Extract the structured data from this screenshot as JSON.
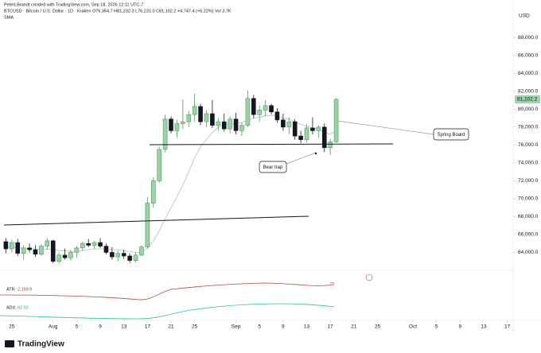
{
  "header": {
    "created_by": "PeterLBrandt created with TradingView.com, Sep 18, 2026 12:11 UTC-7",
    "symbol_line": "BTCUSD · Bitcoin / U.S. Dollar · 1D · Kraken  O76,354.7 H81,232.3 L76,231.0 C81,102.2 +4,747.4 (+6.22%) Vol 3.7K",
    "sma_label": "SMA"
  },
  "chart_data": {
    "type": "candlestick",
    "x": [
      "2026-07-24",
      "2026-07-25",
      "2026-07-26",
      "2026-07-27",
      "2026-07-28",
      "2026-07-29",
      "2026-07-30",
      "2026-07-31",
      "2026-08-01",
      "2026-08-02",
      "2026-08-03",
      "2026-08-04",
      "2026-08-05",
      "2026-08-06",
      "2026-08-07",
      "2026-08-08",
      "2026-08-09",
      "2026-08-10",
      "2026-08-11",
      "2026-08-12",
      "2026-08-13",
      "2026-08-14",
      "2026-08-15",
      "2026-08-16",
      "2026-08-17",
      "2026-08-18",
      "2026-08-19",
      "2026-08-20",
      "2026-08-21",
      "2026-08-22",
      "2026-08-23",
      "2026-08-24",
      "2026-08-25",
      "2026-08-26",
      "2026-08-27",
      "2026-08-28",
      "2026-08-29",
      "2026-08-30",
      "2026-08-31",
      "2026-09-01",
      "2026-09-02",
      "2026-09-03",
      "2026-09-04",
      "2026-09-05",
      "2026-09-06",
      "2026-09-07",
      "2026-09-08",
      "2026-09-09",
      "2026-09-10",
      "2026-09-11",
      "2026-09-12",
      "2026-09-13",
      "2026-09-14",
      "2026-09-15",
      "2026-09-16",
      "2026-09-17",
      "2026-09-18"
    ],
    "open": [
      65200,
      64400,
      65100,
      63900,
      64500,
      64300,
      63800,
      64700,
      65300,
      63000,
      63700,
      63400,
      64000,
      64500,
      65000,
      64800,
      65100,
      64700,
      64000,
      63500,
      63900,
      63600,
      63100,
      63700,
      64600,
      69500,
      72000,
      75500,
      78900,
      77600,
      78400,
      78600,
      79400,
      80300,
      78600,
      79500,
      78200,
      78600,
      77800,
      78900,
      77600,
      78200,
      81200,
      79400,
      79900,
      80400,
      79700,
      78800,
      78000,
      78600,
      77000,
      76600,
      77900,
      77600,
      78000,
      75700,
      76354.7
    ],
    "high": [
      65600,
      65400,
      65500,
      64800,
      65000,
      64800,
      64900,
      65600,
      65400,
      64000,
      64400,
      64300,
      64700,
      65200,
      65500,
      65300,
      65600,
      65000,
      64600,
      64200,
      64300,
      63900,
      64000,
      64800,
      70200,
      72400,
      75800,
      79400,
      79200,
      78800,
      81100,
      79800,
      81700,
      80600,
      79900,
      81000,
      79000,
      79500,
      79200,
      79600,
      78500,
      82100,
      81600,
      80400,
      81000,
      80600,
      80100,
      79500,
      79100,
      78900,
      77600,
      78300,
      79100,
      78200,
      78400,
      76700,
      81232.3
    ],
    "low": [
      63900,
      64000,
      63600,
      63200,
      64000,
      63500,
      63600,
      64300,
      62800,
      62800,
      63200,
      63100,
      63400,
      64200,
      64600,
      64400,
      64500,
      63800,
      63200,
      63000,
      63300,
      62800,
      62900,
      63600,
      64400,
      69000,
      71800,
      75200,
      77300,
      76800,
      77800,
      78000,
      78600,
      78200,
      78000,
      77900,
      77600,
      77500,
      77300,
      77200,
      77000,
      78000,
      79000,
      78600,
      79200,
      79400,
      78500,
      77600,
      77200,
      76600,
      76200,
      76300,
      77200,
      76800,
      75200,
      74900,
      76231.0
    ],
    "close": [
      64400,
      65100,
      63900,
      64500,
      64300,
      63800,
      64700,
      65300,
      63000,
      63700,
      63400,
      64000,
      64500,
      65000,
      64800,
      65100,
      64700,
      64000,
      63500,
      63900,
      63600,
      63100,
      63700,
      64600,
      69500,
      72000,
      75500,
      78900,
      77600,
      78400,
      78600,
      79400,
      80300,
      78600,
      79500,
      78200,
      78600,
      77800,
      78900,
      77600,
      78200,
      81200,
      79400,
      79900,
      80400,
      79700,
      78800,
      78000,
      78600,
      77000,
      76600,
      77900,
      77600,
      78000,
      75700,
      76354.7,
      81102.2
    ],
    "sma": [
      64600,
      64600,
      64500,
      64500,
      64400,
      64400,
      64300,
      64400,
      64300,
      64200,
      64200,
      64100,
      64100,
      64200,
      64300,
      64400,
      64400,
      64400,
      64300,
      64300,
      64200,
      64100,
      64000,
      64000,
      64500,
      65300,
      66400,
      67800,
      69000,
      70200,
      71500,
      73000,
      74600,
      75800,
      76600,
      77400,
      78000,
      78200,
      78400,
      78400,
      78500,
      78800,
      79000,
      79100,
      79300,
      79300,
      79200,
      79000,
      78900,
      78600,
      78300,
      78100,
      77900,
      77800,
      77400,
      77200,
      77600
    ],
    "colors": {
      "up": "#9bd3a6",
      "up_border": "#4f9a5f",
      "down": "#131722",
      "sma": "#b8bbc2"
    },
    "xlim": [
      "2026-07-23",
      "2026-10-18"
    ],
    "xticks": [
      {
        "value": "2026-07-25",
        "label": "25"
      },
      {
        "value": "2026-08-01",
        "label": "Aug"
      },
      {
        "value": "2026-08-05",
        "label": "5"
      },
      {
        "value": "2026-08-09",
        "label": "9"
      },
      {
        "value": "2026-08-13",
        "label": "13"
      },
      {
        "value": "2026-08-17",
        "label": "17"
      },
      {
        "value": "2026-08-21",
        "label": "21"
      },
      {
        "value": "2026-08-25",
        "label": "25"
      },
      {
        "value": "2026-09-01",
        "label": "Sep"
      },
      {
        "value": "2026-09-05",
        "label": "5"
      },
      {
        "value": "2026-09-09",
        "label": "9"
      },
      {
        "value": "2026-09-13",
        "label": "13"
      },
      {
        "value": "2026-09-17",
        "label": "17"
      },
      {
        "value": "2026-09-21",
        "label": "21"
      },
      {
        "value": "2026-09-25",
        "label": "25"
      },
      {
        "value": "2026-10-01",
        "label": "Oct"
      },
      {
        "value": "2026-10-05",
        "label": "5"
      },
      {
        "value": "2026-10-09",
        "label": "9"
      },
      {
        "value": "2026-10-13",
        "label": "13"
      },
      {
        "value": "2026-10-17",
        "label": "17"
      }
    ],
    "ylim": [
      62000,
      92200
    ],
    "yticks": [
      {
        "value": 64000,
        "label": "64,000.0"
      },
      {
        "value": 66000,
        "label": "66,000.0"
      },
      {
        "value": 68000,
        "label": "68,000.0"
      },
      {
        "value": 70000,
        "label": "70,000.0"
      },
      {
        "value": 72000,
        "label": "72,000.0"
      },
      {
        "value": 74000,
        "label": "74,000.0"
      },
      {
        "value": 76000,
        "label": "76,000.0"
      },
      {
        "value": 78000,
        "label": "78,000.0"
      },
      {
        "value": 80000,
        "label": "80,000.0"
      },
      {
        "value": 82000,
        "label": "82,000.0"
      },
      {
        "value": 84000,
        "label": "84,000.0"
      },
      {
        "value": 86000,
        "label": "86,000.0"
      },
      {
        "value": 88000,
        "label": "88,000.0"
      }
    ],
    "y_unit": "USD",
    "last_value_label": "81,102.2",
    "annotations": [
      "Spring Board",
      "Bear trap"
    ]
  },
  "indicators": {
    "atr": {
      "name": "ATR",
      "value": "2,199.9"
    },
    "adx": {
      "name": "ADX",
      "value": "42.92"
    }
  },
  "footer": {
    "logo": "TradingView"
  }
}
